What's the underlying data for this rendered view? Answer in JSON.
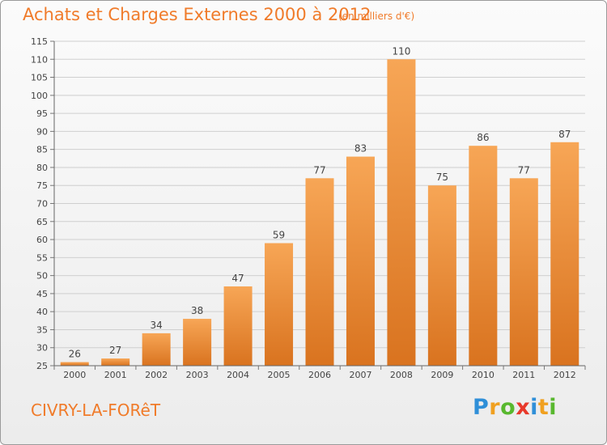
{
  "header": {
    "title": "Achats et Charges Externes 2000 à 2012",
    "subtitle": "(en milliers d'€)"
  },
  "footer": {
    "commune": "CIVRY-LA-FORêT",
    "brand_letters": [
      {
        "char": "P",
        "color": "#2f8fd8"
      },
      {
        "char": "r",
        "color": "#f0a020"
      },
      {
        "char": "o",
        "color": "#58b82e"
      },
      {
        "char": "x",
        "color": "#e8392b"
      },
      {
        "char": "i",
        "color": "#2f8fd8"
      },
      {
        "char": "t",
        "color": "#f0a020"
      },
      {
        "char": "i",
        "color": "#58b82e"
      }
    ]
  },
  "colors": {
    "bar_light": "#f7a656",
    "bar_dark": "#d9731f",
    "accent": "#f07b2a",
    "grid": "#cfcfcf"
  },
  "chart_data": {
    "type": "bar",
    "title": "Achats et Charges Externes 2000 à 2012",
    "subtitle": "(en milliers d'€)",
    "categories": [
      "2000",
      "2001",
      "2002",
      "2003",
      "2004",
      "2005",
      "2006",
      "2007",
      "2008",
      "2009",
      "2010",
      "2011",
      "2012"
    ],
    "values": [
      26,
      27,
      34,
      38,
      47,
      59,
      77,
      83,
      110,
      75,
      86,
      77,
      87
    ],
    "ylim": [
      25,
      115
    ],
    "yticks": [
      25,
      30,
      35,
      40,
      45,
      50,
      55,
      60,
      65,
      70,
      75,
      80,
      85,
      90,
      95,
      100,
      105,
      110,
      115
    ],
    "grid": true,
    "xlabel": "",
    "ylabel": ""
  }
}
